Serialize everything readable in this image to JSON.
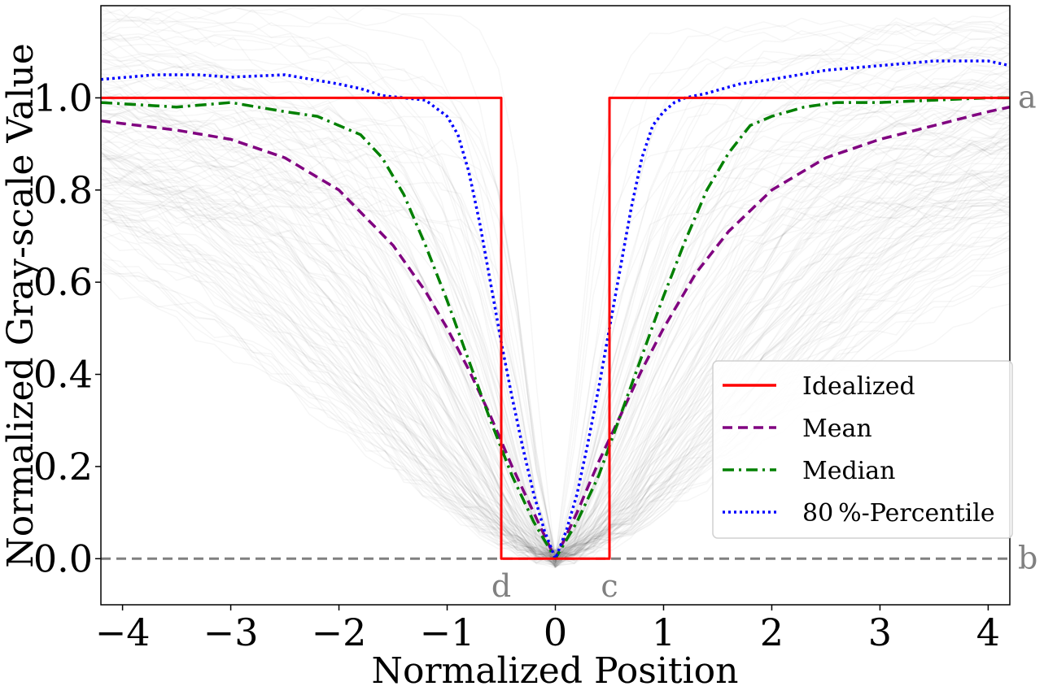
{
  "chart_data": {
    "type": "line",
    "xlabel": "Normalized Position",
    "ylabel": "Normalized Gray-scale Value",
    "xlim": [
      -4.2,
      4.2
    ],
    "ylim": [
      -0.1,
      1.2
    ],
    "xticks": [
      -4,
      -3,
      -2,
      -1,
      0,
      1,
      2,
      3,
      4
    ],
    "xtick_labels": [
      "−4",
      "−3",
      "−2",
      "−1",
      "0",
      "1",
      "2",
      "3",
      "4"
    ],
    "yticks": [
      0.0,
      0.2,
      0.4,
      0.6,
      0.8,
      1.0
    ],
    "ytick_labels": [
      "0.0",
      "0.2",
      "0.4",
      "0.6",
      "0.8",
      "1.0"
    ],
    "grid": false,
    "legend_position": "lower-right",
    "background_traces": "many faint gray individual profiles",
    "series": [
      {
        "name": "Idealized",
        "color": "#ff0000",
        "style": "solid",
        "x": [
          -4.2,
          -0.5,
          -0.5,
          0.5,
          0.5,
          4.2
        ],
        "y": [
          1.0,
          1.0,
          0.0,
          0.0,
          1.0,
          1.0
        ]
      },
      {
        "name": "Mean",
        "color": "#800080",
        "style": "dashed",
        "x": [
          -4.2,
          -3.5,
          -3.0,
          -2.5,
          -2.0,
          -1.5,
          -1.2,
          -1.0,
          -0.8,
          -0.6,
          -0.4,
          -0.2,
          0.0,
          0.2,
          0.4,
          0.6,
          0.8,
          1.0,
          1.3,
          1.6,
          2.0,
          2.5,
          3.0,
          3.5,
          4.0,
          4.2
        ],
        "y": [
          0.95,
          0.93,
          0.91,
          0.87,
          0.8,
          0.68,
          0.58,
          0.5,
          0.41,
          0.31,
          0.2,
          0.1,
          0.0,
          0.1,
          0.21,
          0.31,
          0.41,
          0.5,
          0.62,
          0.71,
          0.8,
          0.87,
          0.91,
          0.94,
          0.97,
          0.98
        ]
      },
      {
        "name": "Median",
        "color": "#008000",
        "style": "dashdot",
        "x": [
          -4.2,
          -3.5,
          -3.0,
          -2.5,
          -2.2,
          -2.0,
          -1.8,
          -1.6,
          -1.4,
          -1.2,
          -1.0,
          -0.8,
          -0.6,
          -0.4,
          -0.2,
          0.0,
          0.2,
          0.4,
          0.6,
          0.8,
          1.0,
          1.2,
          1.4,
          1.6,
          1.8,
          2.0,
          2.3,
          2.6,
          3.0,
          3.5,
          4.0,
          4.2
        ],
        "y": [
          0.99,
          0.98,
          0.99,
          0.97,
          0.96,
          0.94,
          0.92,
          0.87,
          0.79,
          0.68,
          0.56,
          0.43,
          0.3,
          0.18,
          0.08,
          0.0,
          0.08,
          0.18,
          0.31,
          0.44,
          0.57,
          0.69,
          0.8,
          0.88,
          0.94,
          0.96,
          0.98,
          0.99,
          0.99,
          0.995,
          1.0,
          1.0
        ]
      },
      {
        "name": "80 %-Percentile",
        "color": "#0000ff",
        "style": "dotted",
        "x": [
          -4.2,
          -3.7,
          -3.3,
          -3.0,
          -2.5,
          -2.0,
          -1.8,
          -1.6,
          -1.4,
          -1.2,
          -1.0,
          -0.9,
          -0.8,
          -0.7,
          -0.6,
          -0.5,
          -0.4,
          -0.3,
          -0.2,
          -0.1,
          0.0,
          0.1,
          0.2,
          0.3,
          0.4,
          0.5,
          0.6,
          0.7,
          0.8,
          0.9,
          1.0,
          1.1,
          1.2,
          1.4,
          1.7,
          2.0,
          2.5,
          3.0,
          3.5,
          4.0,
          4.2
        ],
        "y": [
          1.04,
          1.05,
          1.05,
          1.045,
          1.05,
          1.03,
          1.02,
          1.005,
          1.0,
          0.995,
          0.96,
          0.92,
          0.84,
          0.73,
          0.6,
          0.47,
          0.35,
          0.24,
          0.14,
          0.06,
          0.0,
          0.06,
          0.14,
          0.25,
          0.37,
          0.5,
          0.63,
          0.76,
          0.87,
          0.94,
          0.97,
          0.99,
          1.0,
          1.01,
          1.03,
          1.04,
          1.06,
          1.07,
          1.08,
          1.08,
          1.07
        ]
      }
    ],
    "reference_line": {
      "y": 0.0,
      "color": "#808080",
      "style": "dashed"
    },
    "annotations": [
      {
        "text": "a",
        "x": 4.2,
        "y": 1.0
      },
      {
        "text": "b",
        "x": 4.2,
        "y": 0.0
      },
      {
        "text": "d",
        "x": -0.5,
        "y": -0.05
      },
      {
        "text": "c",
        "x": 0.5,
        "y": -0.05
      }
    ]
  }
}
